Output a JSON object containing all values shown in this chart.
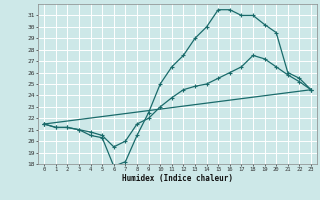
{
  "xlabel": "Humidex (Indice chaleur)",
  "background_color": "#cde8e8",
  "grid_color": "#ffffff",
  "line_color": "#1a6b6b",
  "xlim": [
    -0.5,
    23.5
  ],
  "ylim": [
    18,
    32
  ],
  "yticks": [
    18,
    19,
    20,
    21,
    22,
    23,
    24,
    25,
    26,
    27,
    28,
    29,
    30,
    31
  ],
  "xticks": [
    0,
    1,
    2,
    3,
    4,
    5,
    6,
    7,
    8,
    9,
    10,
    11,
    12,
    13,
    14,
    15,
    16,
    17,
    18,
    19,
    20,
    21,
    22,
    23
  ],
  "series": [
    {
      "x": [
        0,
        1,
        2,
        3,
        4,
        5,
        6,
        7,
        8,
        9,
        10,
        11,
        12,
        13,
        14,
        15,
        16,
        17,
        18,
        19,
        20,
        21,
        22,
        23
      ],
      "y": [
        21.5,
        21.2,
        21.2,
        21.0,
        20.5,
        20.3,
        17.8,
        18.2,
        20.5,
        22.5,
        25.0,
        26.5,
        27.5,
        29.0,
        30.0,
        31.5,
        31.5,
        31.0,
        31.0,
        30.2,
        29.5,
        26.0,
        25.5,
        24.5
      ]
    },
    {
      "x": [
        0,
        1,
        2,
        3,
        4,
        5,
        6,
        7,
        8,
        9,
        10,
        11,
        12,
        13,
        14,
        15,
        16,
        17,
        18,
        19,
        20,
        21,
        22,
        23
      ],
      "y": [
        21.5,
        21.2,
        21.2,
        21.0,
        20.8,
        20.5,
        19.5,
        20.0,
        21.5,
        22.0,
        23.0,
        23.8,
        24.5,
        24.8,
        25.0,
        25.5,
        26.0,
        26.5,
        27.5,
        27.2,
        26.5,
        25.8,
        25.2,
        24.5
      ]
    },
    {
      "x": [
        0,
        23
      ],
      "y": [
        21.5,
        24.5
      ]
    }
  ]
}
